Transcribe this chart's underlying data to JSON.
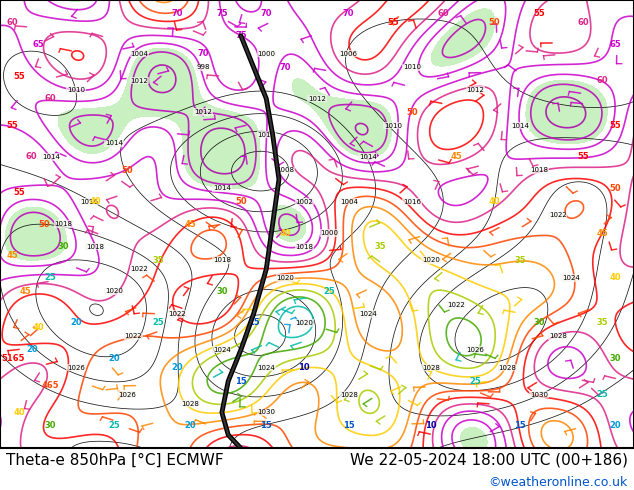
{
  "title_left": "Theta-e 850hPa [°C] ECMWF",
  "title_right": "We 22-05-2024 18:00 UTC (00+186)",
  "copyright": "©weatheronline.co.uk",
  "bg_color": "#ffffff",
  "title_fontsize": 11,
  "copyright_color": "#0055cc",
  "figsize": [
    6.34,
    4.9
  ],
  "dpi": 100,
  "map_bg": "#f5f5f0",
  "green_fill": "#c8f0c0",
  "theta_colors": {
    "75": "#cc00cc",
    "70": "#cc00cc",
    "65": "#cc00cc",
    "60": "#dd2288",
    "55": "#ff0000",
    "50": "#ff4400",
    "45": "#ff8800",
    "40": "#ffcc00",
    "35": "#aacc00",
    "30": "#44aa00",
    "25": "#00bb88",
    "20": "#00aadd",
    "15": "#0055cc",
    "10": "#0000aa"
  }
}
